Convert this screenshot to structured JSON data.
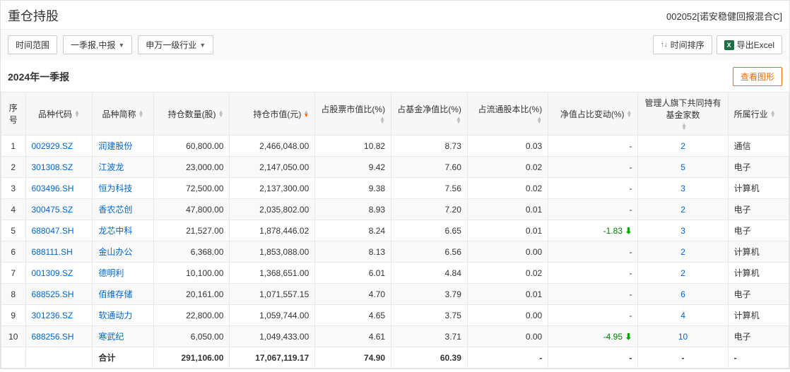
{
  "header": {
    "title": "重仓持股",
    "fund_code": "002052[诺安稳健回报混合C]"
  },
  "toolbar": {
    "time_range": "时间范围",
    "period": "一季报,中报",
    "industry": "申万一级行业",
    "time_sort": "时间排序",
    "export_excel": "导出Excel"
  },
  "section": {
    "subtitle": "2024年一季报",
    "view_chart": "查看图形"
  },
  "columns": [
    {
      "key": "idx",
      "label": "序号"
    },
    {
      "key": "code",
      "label": "品种代码"
    },
    {
      "key": "name",
      "label": "品种简称"
    },
    {
      "key": "qty",
      "label": "持仓数量(股)"
    },
    {
      "key": "val",
      "label": "持仓市值(元)",
      "sort": "desc-active"
    },
    {
      "key": "pct1",
      "label": "占股票市值比(%)"
    },
    {
      "key": "pct2",
      "label": "占基金净值比(%)"
    },
    {
      "key": "pct3",
      "label": "占流通股本比(%)"
    },
    {
      "key": "chg",
      "label": "净值占比变动(%)"
    },
    {
      "key": "mgr",
      "label": "管理人旗下共同持有基金家数"
    },
    {
      "key": "ind",
      "label": "所属行业"
    }
  ],
  "rows": [
    {
      "idx": "1",
      "code": "002929.SZ",
      "name": "润建股份",
      "qty": "60,800.00",
      "val": "2,466,048.00",
      "pct1": "10.82",
      "pct2": "8.73",
      "pct3": "0.03",
      "chg": "-",
      "mgr": "2",
      "ind": "通信"
    },
    {
      "idx": "2",
      "code": "301308.SZ",
      "name": "江波龙",
      "qty": "23,000.00",
      "val": "2,147,050.00",
      "pct1": "9.42",
      "pct2": "7.60",
      "pct3": "0.02",
      "chg": "-",
      "mgr": "5",
      "ind": "电子"
    },
    {
      "idx": "3",
      "code": "603496.SH",
      "name": "恒为科技",
      "qty": "72,500.00",
      "val": "2,137,300.00",
      "pct1": "9.38",
      "pct2": "7.56",
      "pct3": "0.02",
      "chg": "-",
      "mgr": "3",
      "ind": "计算机"
    },
    {
      "idx": "4",
      "code": "300475.SZ",
      "name": "香农芯创",
      "qty": "47,800.00",
      "val": "2,035,802.00",
      "pct1": "8.93",
      "pct2": "7.20",
      "pct3": "0.01",
      "chg": "-",
      "mgr": "2",
      "ind": "电子"
    },
    {
      "idx": "5",
      "code": "688047.SH",
      "name": "龙芯中科",
      "qty": "21,527.00",
      "val": "1,878,446.02",
      "pct1": "8.24",
      "pct2": "6.65",
      "pct3": "0.01",
      "chg": "-1.83",
      "chg_dir": "down",
      "mgr": "3",
      "ind": "电子"
    },
    {
      "idx": "6",
      "code": "688111.SH",
      "name": "金山办公",
      "qty": "6,368.00",
      "val": "1,853,088.00",
      "pct1": "8.13",
      "pct2": "6.56",
      "pct3": "0.00",
      "chg": "-",
      "mgr": "2",
      "ind": "计算机"
    },
    {
      "idx": "7",
      "code": "001309.SZ",
      "name": "德明利",
      "qty": "10,100.00",
      "val": "1,368,651.00",
      "pct1": "6.01",
      "pct2": "4.84",
      "pct3": "0.02",
      "chg": "-",
      "mgr": "2",
      "ind": "计算机"
    },
    {
      "idx": "8",
      "code": "688525.SH",
      "name": "佰维存储",
      "qty": "20,161.00",
      "val": "1,071,557.15",
      "pct1": "4.70",
      "pct2": "3.79",
      "pct3": "0.01",
      "chg": "-",
      "mgr": "6",
      "ind": "电子"
    },
    {
      "idx": "9",
      "code": "301236.SZ",
      "name": "软通动力",
      "qty": "22,800.00",
      "val": "1,059,744.00",
      "pct1": "4.65",
      "pct2": "3.75",
      "pct3": "0.00",
      "chg": "-",
      "mgr": "4",
      "ind": "计算机"
    },
    {
      "idx": "10",
      "code": "688256.SH",
      "name": "寒武纪",
      "qty": "6,050.00",
      "val": "1,049,433.00",
      "pct1": "4.61",
      "pct2": "3.71",
      "pct3": "0.00",
      "chg": "-4.95",
      "chg_dir": "down",
      "mgr": "10",
      "ind": "电子"
    }
  ],
  "sum": {
    "label": "合计",
    "qty": "291,106.00",
    "val": "17,067,119.17",
    "pct1": "74.90",
    "pct2": "60.39",
    "pct3": "-",
    "chg": "-",
    "mgr": "-",
    "ind": "-"
  },
  "style": {
    "link_color": "#0066cc",
    "neg_color": "#008000",
    "accent_color": "#ff6600",
    "header_bg": "#f7f7f7",
    "row_alt_bg": "#f9f9f9",
    "border_color": "#e8e8e8"
  }
}
